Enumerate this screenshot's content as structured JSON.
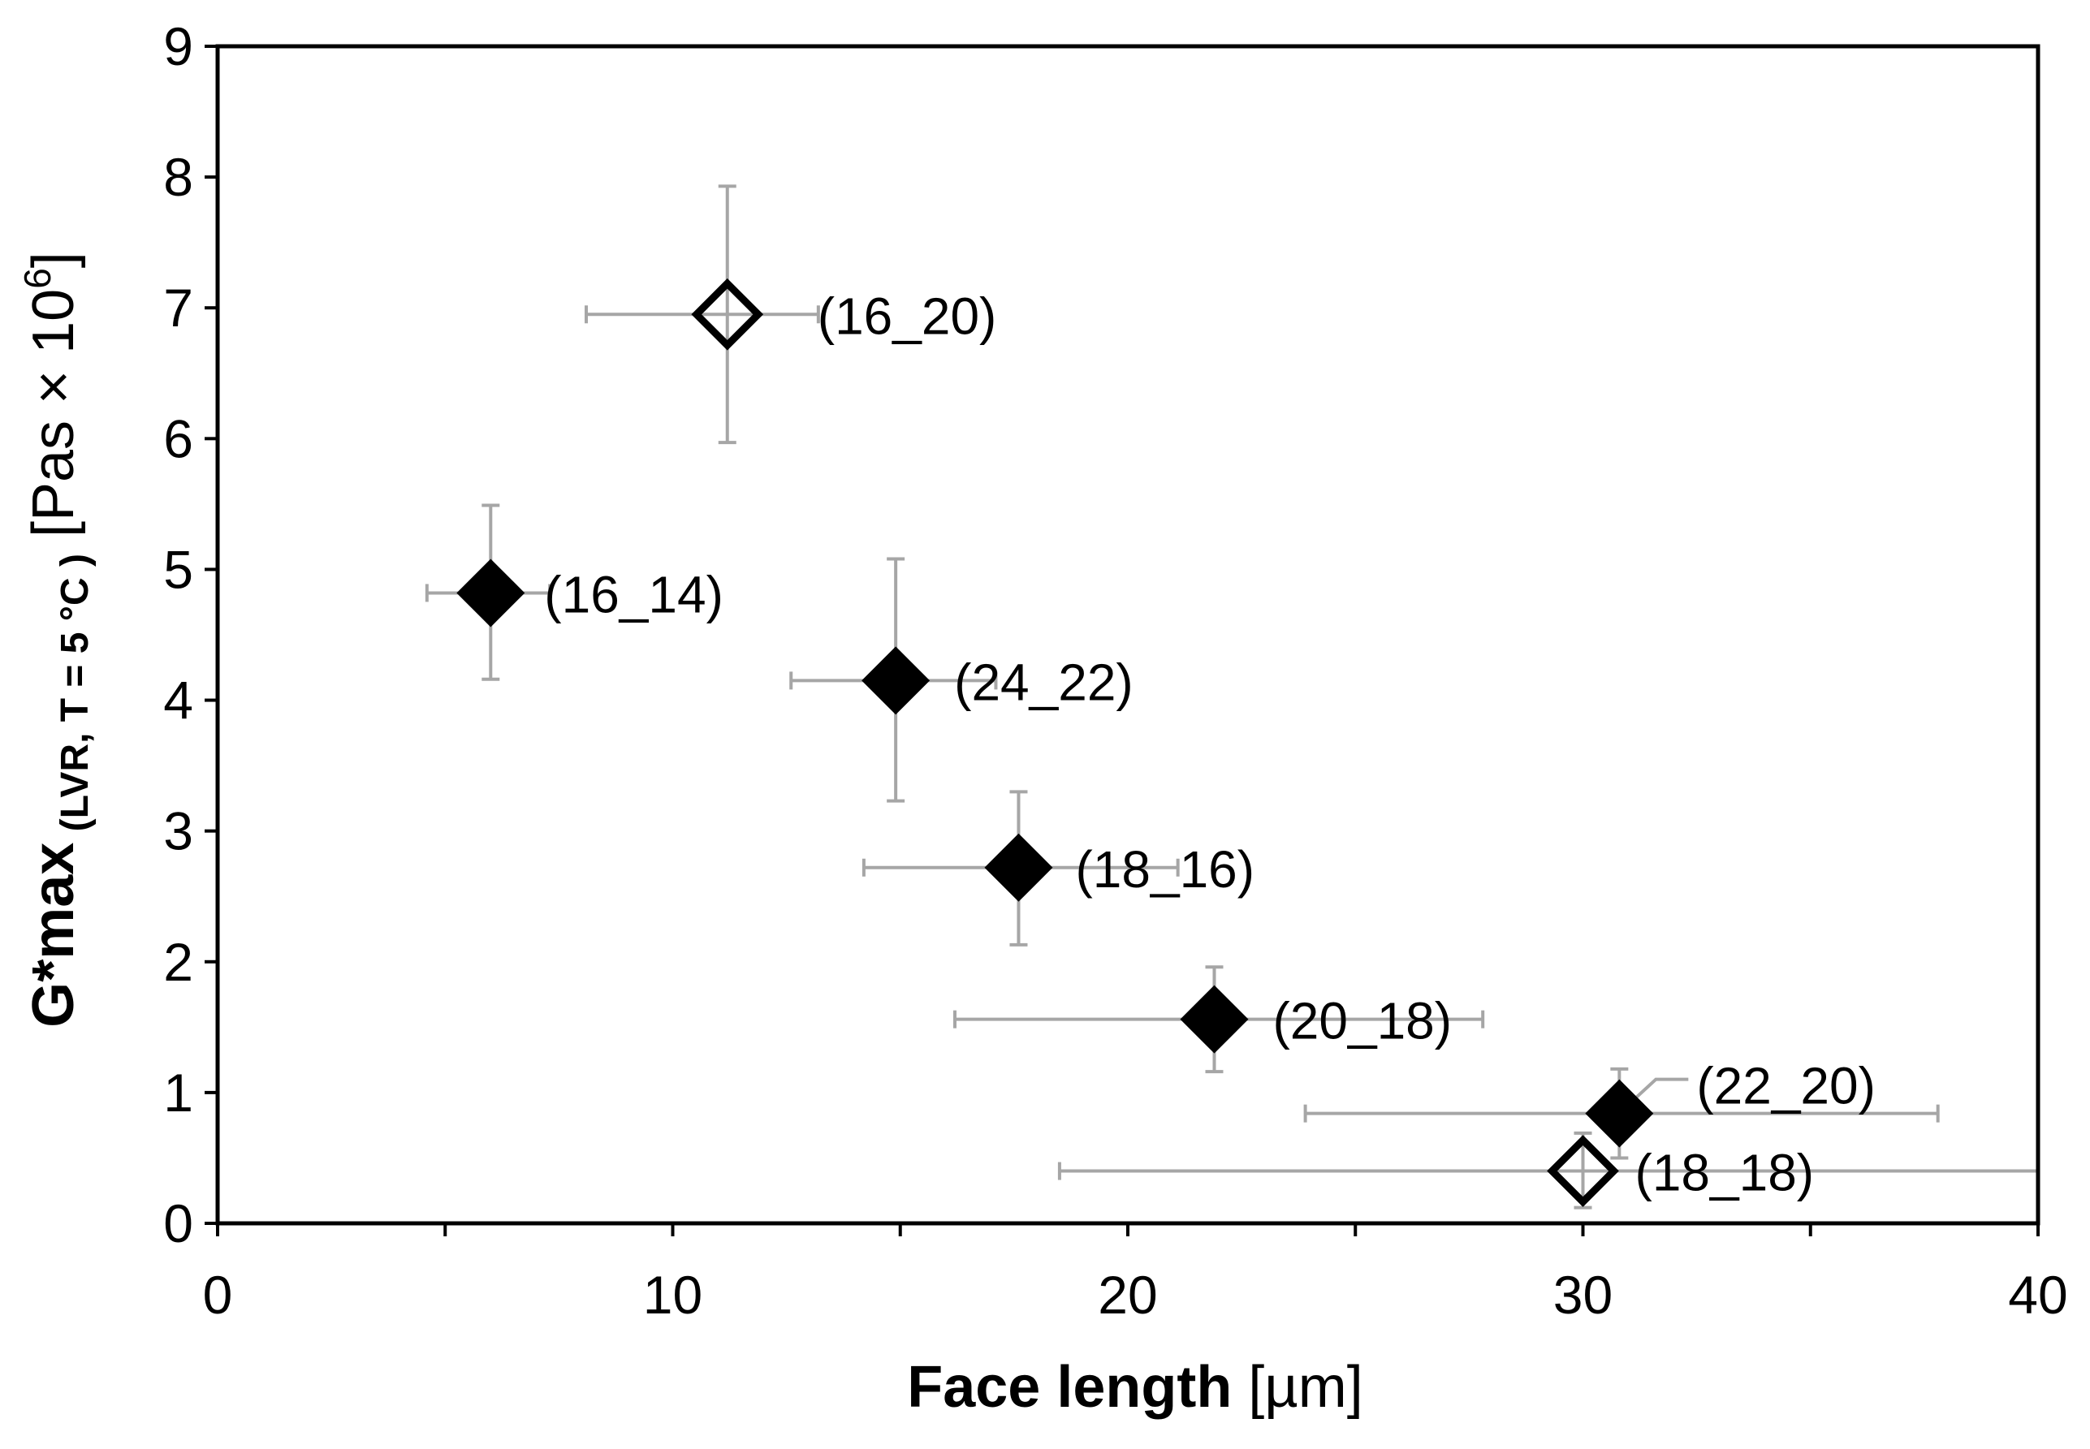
{
  "chart_data": {
    "type": "scatter",
    "xlabel": {
      "bold": "Face length",
      "normal": " [µm]"
    },
    "ylabel": {
      "main": "G*max",
      "sub": " (LVR, T = 5 °C )",
      "unit": " [Pas × 10",
      "exp": "6",
      "close": "]"
    },
    "xlim": [
      0,
      40
    ],
    "ylim": [
      0,
      9
    ],
    "x_ticks": [
      0,
      10,
      20,
      30,
      40
    ],
    "y_ticks": [
      0,
      1,
      2,
      3,
      4,
      5,
      6,
      7,
      8,
      9
    ],
    "x_tick_labels": [
      "0",
      "10",
      "20",
      "30",
      "40"
    ],
    "y_tick_labels": [
      "0",
      "1",
      "2",
      "3",
      "4",
      "5",
      "6",
      "7",
      "8",
      "9"
    ],
    "grid": false,
    "legend": "none",
    "colors": {
      "filled": "#000000",
      "open_fill": "#ffffff",
      "error_bar": "#a6a6a6",
      "axis": "#000000"
    },
    "points": [
      {
        "label": "(16_20)",
        "x": 11.2,
        "y": 6.95,
        "x_err": [
          8.1,
          13.2
        ],
        "y_err": [
          5.97,
          7.93
        ],
        "marker": "open"
      },
      {
        "label": "(16_14)",
        "x": 6.0,
        "y": 4.82,
        "x_err": [
          4.6,
          7.3
        ],
        "y_err": [
          4.16,
          5.49
        ],
        "marker": "filled"
      },
      {
        "label": "(24_22)",
        "x": 14.9,
        "y": 4.15,
        "x_err": [
          12.6,
          17.1
        ],
        "y_err": [
          3.23,
          5.08
        ],
        "marker": "filled"
      },
      {
        "label": "(18_16)",
        "x": 17.6,
        "y": 2.72,
        "x_err": [
          14.2,
          21.1
        ],
        "y_err": [
          2.13,
          3.3
        ],
        "marker": "filled"
      },
      {
        "label": "(20_18)",
        "x": 21.9,
        "y": 1.56,
        "x_err": [
          16.2,
          27.8
        ],
        "y_err": [
          1.16,
          1.96
        ],
        "marker": "filled"
      },
      {
        "label": "(22_20)",
        "x": 30.8,
        "y": 0.84,
        "x_err": [
          23.9,
          37.8
        ],
        "y_err": [
          0.5,
          1.18
        ],
        "marker": "filled"
      },
      {
        "label": "(18_18)",
        "x": 30.0,
        "y": 0.4,
        "x_err": [
          18.5,
          40.0
        ],
        "y_err": [
          0.12,
          0.69
        ],
        "marker": "open"
      }
    ]
  }
}
